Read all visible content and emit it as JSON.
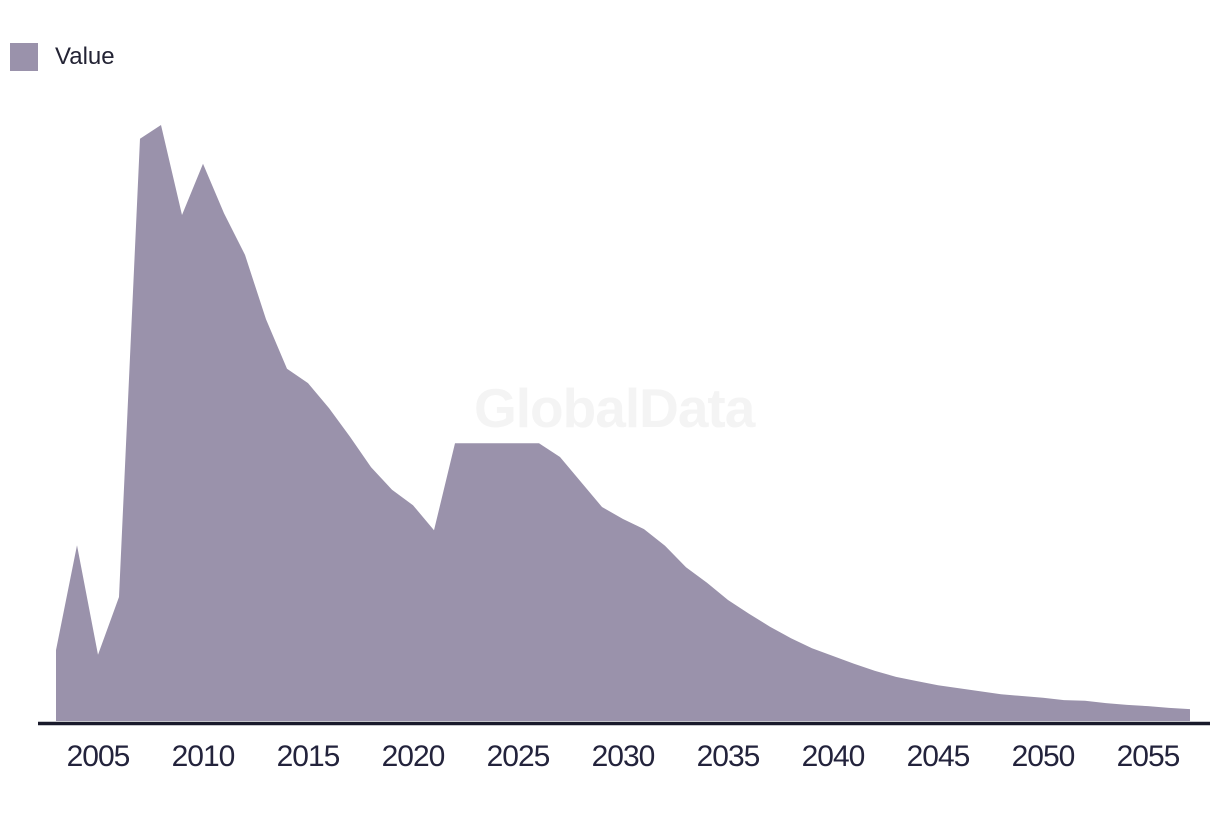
{
  "legend": {
    "label": "Value",
    "swatch_color": "#9a92ab"
  },
  "watermark": "GlobalData",
  "colors": {
    "area_fill": "#9a92ab",
    "axis_line": "#191a2b",
    "tick_text": "#23233c",
    "legend_text": "#232334",
    "watermark_text": "#f4f4f4",
    "background": "#ffffff"
  },
  "chart_data": {
    "type": "area",
    "title": "",
    "xlabel": "",
    "ylabel": "",
    "x_ticks": [
      2005,
      2010,
      2015,
      2020,
      2025,
      2030,
      2035,
      2040,
      2045,
      2050,
      2055
    ],
    "x_range": [
      2003,
      2057
    ],
    "ylim": [
      0,
      100
    ],
    "y_axis_visible": false,
    "grid": false,
    "legend_position": "top-left",
    "value_units": "relative units (no y-axis shown; values normalized so peak 2008 = 100)",
    "series": [
      {
        "name": "Value",
        "x": [
          2003,
          2004,
          2005,
          2006,
          2007,
          2008,
          2009,
          2010,
          2011,
          2012,
          2013,
          2014,
          2015,
          2016,
          2017,
          2018,
          2019,
          2020,
          2021,
          2022,
          2023,
          2024,
          2025,
          2026,
          2027,
          2028,
          2029,
          2030,
          2031,
          2032,
          2033,
          2034,
          2035,
          2036,
          2037,
          2038,
          2039,
          2040,
          2041,
          2042,
          2043,
          2044,
          2045,
          2046,
          2047,
          2048,
          2049,
          2050,
          2051,
          2052,
          2053,
          2054,
          2055,
          2056,
          2057
        ],
        "values": [
          11.9,
          29.5,
          11.1,
          20.8,
          97.7,
          100.0,
          84.9,
          93.5,
          85.2,
          78.2,
          67.4,
          59.1,
          56.7,
          52.5,
          47.7,
          42.6,
          38.8,
          36.2,
          32.0,
          46.6,
          46.6,
          46.6,
          46.6,
          46.6,
          44.3,
          40.1,
          35.9,
          33.9,
          32.2,
          29.4,
          25.8,
          23.2,
          20.3,
          18.0,
          15.8,
          13.9,
          12.2,
          10.9,
          9.6,
          8.4,
          7.4,
          6.7,
          6.0,
          5.5,
          5.0,
          4.5,
          4.2,
          3.9,
          3.5,
          3.4,
          3.0,
          2.7,
          2.5,
          2.2,
          2.0
        ]
      }
    ]
  }
}
